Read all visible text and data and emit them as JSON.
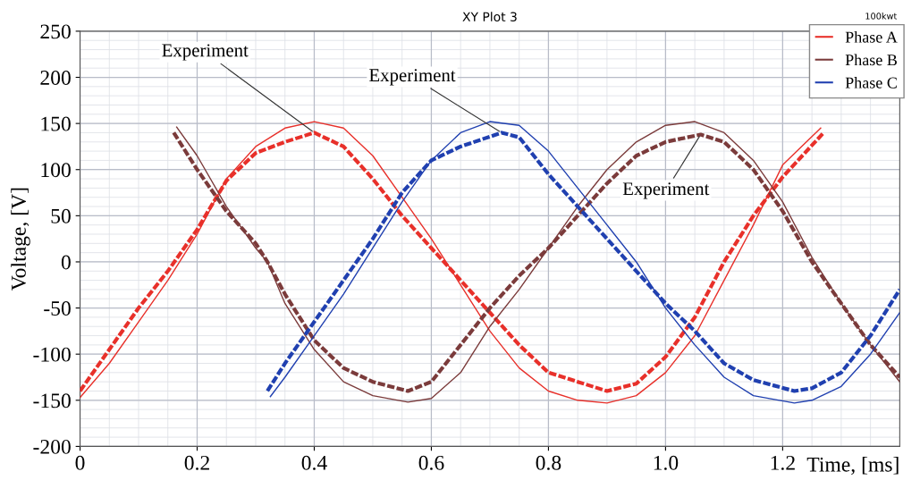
{
  "chart_data": {
    "type": "line",
    "title": "XY Plot 3",
    "xlabel": "Time, [ms]",
    "ylabel": "Voltage, [V]",
    "xlim": [
      0,
      1.4
    ],
    "ylim": [
      -200,
      250
    ],
    "xticks": [
      0,
      0.2,
      0.4,
      0.6,
      0.8,
      {
        "value": 1.0,
        "label": "1.0"
      },
      1.2
    ],
    "yticks": [
      -200,
      -150,
      -100,
      -50,
      0,
      50,
      100,
      150,
      200,
      250
    ],
    "grid": true,
    "legend": "top right",
    "annotations": [
      "100kwt",
      {
        "text": "Experiment",
        "x": 0.4,
        "y": 140
      },
      {
        "text": "Experiment",
        "x": 0.72,
        "y": 140
      },
      {
        "text": "Experiment",
        "x": 1.06,
        "y": 138
      }
    ],
    "series": [
      {
        "name": "Phase A",
        "color": "#e8302a",
        "line_style": "solid",
        "x": [
          0,
          0.05,
          0.1,
          0.15,
          0.2,
          0.25,
          0.3,
          0.35,
          0.4,
          0.45,
          0.5,
          0.55,
          0.6,
          0.65,
          0.7,
          0.75,
          0.8,
          0.85,
          0.9,
          0.95,
          1.0,
          1.05,
          1.1,
          1.15,
          1.2,
          1.265
        ],
        "values": [
          -147,
          -110,
          -65,
          -20,
          30,
          90,
          125,
          145,
          152,
          145,
          115,
          70,
          25,
          -25,
          -75,
          -115,
          -140,
          -150,
          -153,
          -145,
          -120,
          -80,
          -20,
          40,
          105,
          145
        ]
      },
      {
        "color": "#e8302a",
        "line_style": "dashed",
        "x": [
          0,
          0.05,
          0.1,
          0.15,
          0.2,
          0.25,
          0.3,
          0.35,
          0.4,
          0.45,
          0.5,
          0.55,
          0.6,
          0.65,
          0.7,
          0.75,
          0.8,
          0.85,
          0.9,
          0.95,
          1.0,
          1.05,
          1.1,
          1.15,
          1.2,
          1.27
        ],
        "values": [
          -140,
          -95,
          -50,
          -10,
          35,
          88,
          118,
          130,
          140,
          125,
          90,
          50,
          15,
          -20,
          -55,
          -90,
          -120,
          -130,
          -140,
          -132,
          -103,
          -60,
          0,
          50,
          92,
          140
        ]
      },
      {
        "name": "Phase B",
        "color": "#7b3b3b",
        "line_style": "solid",
        "x": [
          0.165,
          0.2,
          0.25,
          0.3,
          0.32,
          0.35,
          0.4,
          0.45,
          0.5,
          0.56,
          0.6,
          0.65,
          0.7,
          0.75,
          0.8,
          0.85,
          0.9,
          0.95,
          1.0,
          1.05,
          1.1,
          1.15,
          1.2,
          1.25,
          1.3,
          1.35,
          1.4
        ],
        "values": [
          146,
          115,
          60,
          15,
          0,
          -45,
          -95,
          -130,
          -145,
          -152,
          -148,
          -120,
          -70,
          -30,
          15,
          60,
          100,
          130,
          148,
          152,
          140,
          110,
          65,
          5,
          -45,
          -90,
          -130
        ]
      },
      {
        "color": "#7b3b3b",
        "line_style": "dashed",
        "x": [
          0.16,
          0.2,
          0.25,
          0.3,
          0.32,
          0.35,
          0.4,
          0.45,
          0.5,
          0.56,
          0.6,
          0.65,
          0.7,
          0.75,
          0.8,
          0.85,
          0.9,
          0.95,
          1.0,
          1.06,
          1.1,
          1.15,
          1.2,
          1.25,
          1.3,
          1.35,
          1.4
        ],
        "values": [
          140,
          100,
          55,
          20,
          0,
          -35,
          -85,
          -115,
          -130,
          -140,
          -130,
          -90,
          -50,
          -15,
          15,
          50,
          85,
          115,
          130,
          138,
          130,
          100,
          55,
          0,
          -45,
          -90,
          -125
        ]
      },
      {
        "name": "Phase C",
        "color": "#2040b0",
        "line_style": "solid",
        "x": [
          0.325,
          0.35,
          0.4,
          0.45,
          0.5,
          0.55,
          0.6,
          0.65,
          0.7,
          0.75,
          0.8,
          0.85,
          0.9,
          0.95,
          1.0,
          1.05,
          1.1,
          1.15,
          1.22,
          1.25,
          1.3,
          1.35,
          1.4
        ],
        "values": [
          -146,
          -125,
          -80,
          -35,
          15,
          65,
          110,
          140,
          152,
          148,
          120,
          80,
          40,
          0,
          -50,
          -90,
          -125,
          -145,
          -153,
          -150,
          -135,
          -100,
          -55
        ]
      },
      {
        "color": "#2040b0",
        "line_style": "dashed",
        "x": [
          0.32,
          0.35,
          0.4,
          0.45,
          0.5,
          0.55,
          0.6,
          0.65,
          0.72,
          0.75,
          0.8,
          0.85,
          0.9,
          0.95,
          1.0,
          1.05,
          1.1,
          1.15,
          1.22,
          1.25,
          1.3,
          1.35,
          1.4
        ],
        "values": [
          -140,
          -110,
          -65,
          -20,
          25,
          75,
          110,
          125,
          140,
          135,
          95,
          60,
          25,
          -10,
          -45,
          -75,
          -110,
          -128,
          -140,
          -137,
          -120,
          -80,
          -30
        ]
      }
    ]
  }
}
